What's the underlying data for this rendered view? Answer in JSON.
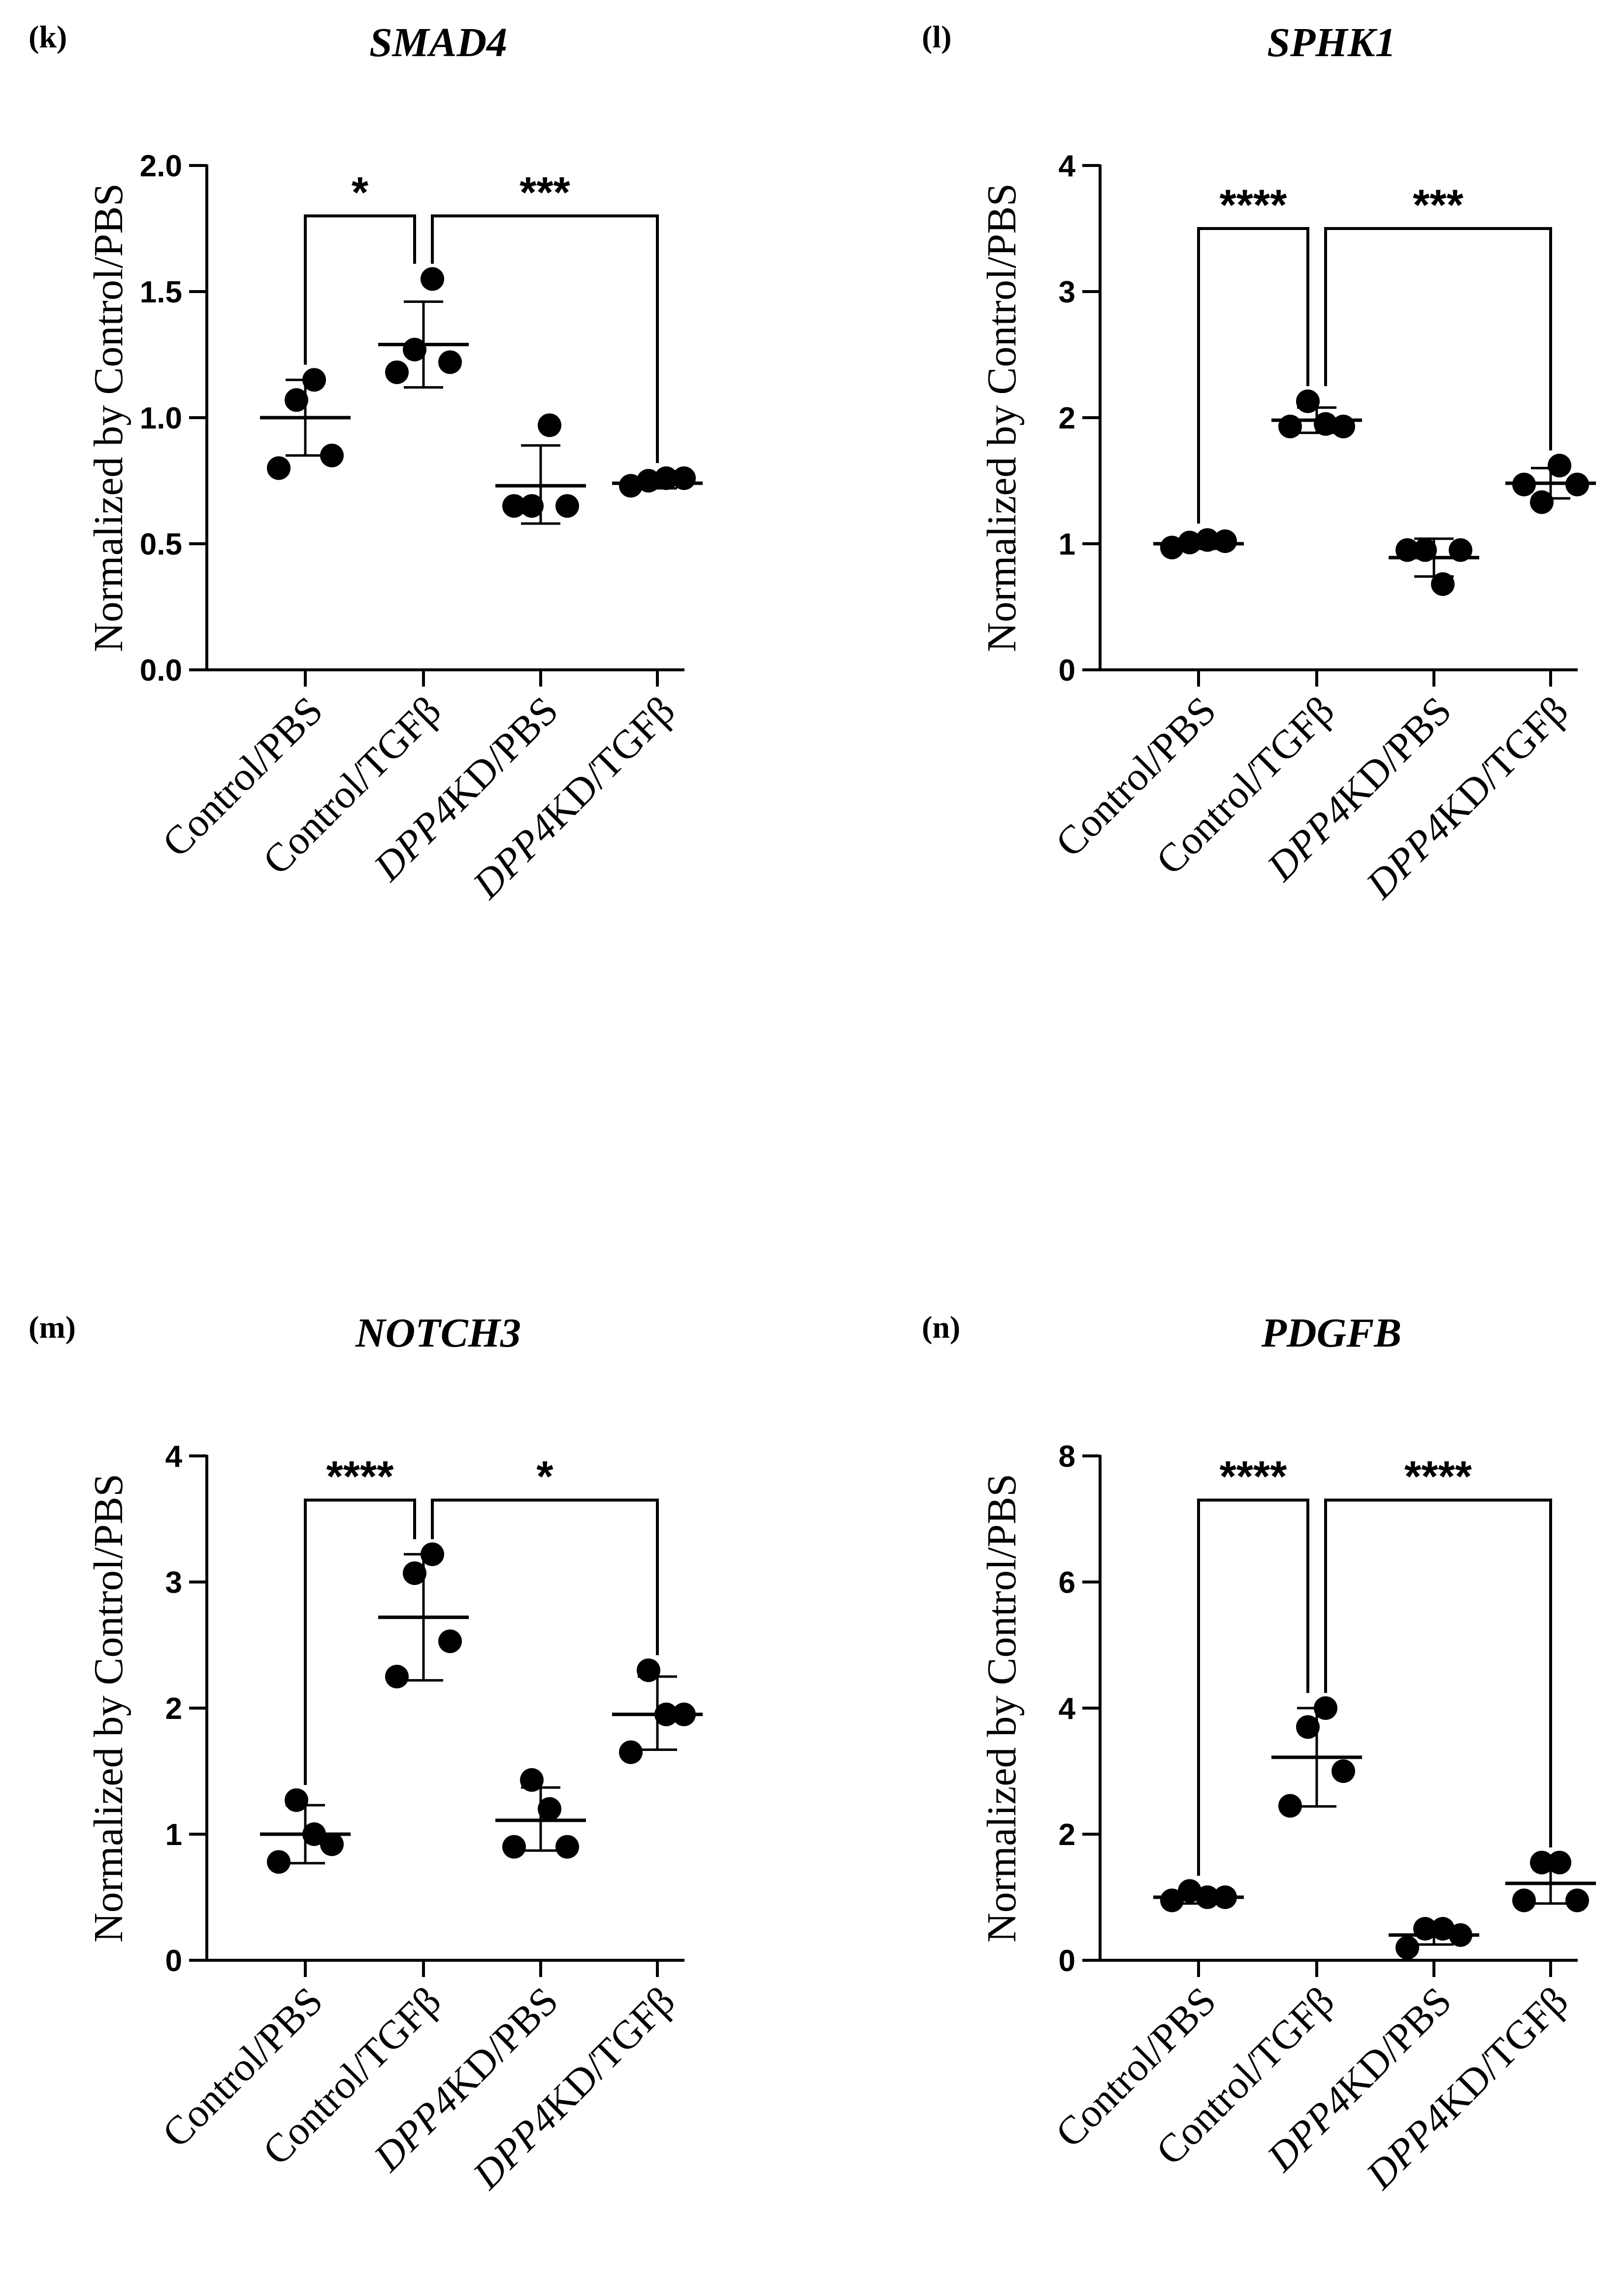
{
  "chart_data": [
    {
      "panel_label": "(k)",
      "title": "SMAD4",
      "type": "scatter",
      "ylabel": "Normalized by Control/PBS",
      "ylim": [
        0,
        2.0
      ],
      "yticks": [
        "0.0",
        "0.5",
        "1.0",
        "1.5",
        "2.0"
      ],
      "categories": [
        {
          "prefix": "Control/",
          "italic": "",
          "suffix": "PBS"
        },
        {
          "prefix": "Control/",
          "italic": "",
          "suffix": "TGFβ"
        },
        {
          "prefix": "",
          "italic": "DPP4",
          "suffix": "KD/PBS"
        },
        {
          "prefix": "",
          "italic": "DPP4",
          "suffix": "KD/TGFβ"
        }
      ],
      "groups": [
        {
          "points": [
            0.8,
            1.07,
            1.15,
            0.85
          ],
          "mean": 1.0,
          "sd_low": 0.85,
          "sd_high": 1.15
        },
        {
          "points": [
            1.18,
            1.27,
            1.55,
            1.22
          ],
          "mean": 1.29,
          "sd_low": 1.12,
          "sd_high": 1.46
        },
        {
          "points": [
            0.65,
            0.65,
            0.97,
            0.65
          ],
          "mean": 0.73,
          "sd_low": 0.58,
          "sd_high": 0.89
        },
        {
          "points": [
            0.73,
            0.75,
            0.76,
            0.76
          ],
          "mean": 0.74,
          "sd_low": 0.72,
          "sd_high": 0.76
        }
      ],
      "brackets": [
        {
          "from": 0,
          "to": 1,
          "y": 1.8,
          "label": "*"
        },
        {
          "from": 1,
          "to": 3,
          "y": 1.8,
          "label": "***"
        }
      ]
    },
    {
      "panel_label": "(l)",
      "title": "SPHK1",
      "type": "scatter",
      "ylabel": "Normalized by Control/PBS",
      "ylim": [
        0,
        4
      ],
      "yticks": [
        "0",
        "1",
        "2",
        "3",
        "4"
      ],
      "categories": [
        {
          "prefix": "Control/",
          "italic": "",
          "suffix": "PBS"
        },
        {
          "prefix": "Control/",
          "italic": "",
          "suffix": "TGFβ"
        },
        {
          "prefix": "",
          "italic": "DPP4",
          "suffix": "KD/PBS"
        },
        {
          "prefix": "",
          "italic": "DPP4",
          "suffix": "KD/TGFβ"
        }
      ],
      "groups": [
        {
          "points": [
            0.97,
            1.01,
            1.03,
            1.02
          ],
          "mean": 1.0,
          "sd_low": 0.96,
          "sd_high": 1.04
        },
        {
          "points": [
            1.93,
            2.13,
            1.95,
            1.93
          ],
          "mean": 1.98,
          "sd_low": 1.88,
          "sd_high": 2.08
        },
        {
          "points": [
            0.95,
            0.95,
            0.68,
            0.95
          ],
          "mean": 0.89,
          "sd_low": 0.74,
          "sd_high": 1.04
        },
        {
          "points": [
            1.47,
            1.33,
            1.62,
            1.47
          ],
          "mean": 1.48,
          "sd_low": 1.36,
          "sd_high": 1.6
        }
      ],
      "brackets": [
        {
          "from": 0,
          "to": 1,
          "y": 3.5,
          "label": "****"
        },
        {
          "from": 1,
          "to": 3,
          "y": 3.5,
          "label": "***"
        }
      ]
    },
    {
      "panel_label": "(m)",
      "title": "NOTCH3",
      "type": "scatter",
      "ylabel": "Normalized by Control/PBS",
      "ylim": [
        0,
        4
      ],
      "yticks": [
        "0",
        "1",
        "2",
        "3",
        "4"
      ],
      "categories": [
        {
          "prefix": "Control/",
          "italic": "",
          "suffix": "PBS"
        },
        {
          "prefix": "Control/",
          "italic": "",
          "suffix": "TGFβ"
        },
        {
          "prefix": "",
          "italic": "DPP4",
          "suffix": "KD/PBS"
        },
        {
          "prefix": "",
          "italic": "DPP4",
          "suffix": "KD/TGFβ"
        }
      ],
      "groups": [
        {
          "points": [
            0.78,
            1.27,
            1.0,
            0.92
          ],
          "mean": 1.0,
          "sd_low": 0.77,
          "sd_high": 1.23
        },
        {
          "points": [
            2.25,
            3.07,
            3.22,
            2.53
          ],
          "mean": 2.72,
          "sd_low": 2.22,
          "sd_high": 3.22
        },
        {
          "points": [
            0.9,
            1.43,
            1.2,
            0.9
          ],
          "mean": 1.11,
          "sd_low": 0.87,
          "sd_high": 1.37
        },
        {
          "points": [
            1.65,
            2.3,
            1.95,
            1.95
          ],
          "mean": 1.95,
          "sd_low": 1.67,
          "sd_high": 2.25
        }
      ],
      "brackets": [
        {
          "from": 0,
          "to": 1,
          "y": 3.65,
          "label": "****"
        },
        {
          "from": 1,
          "to": 3,
          "y": 3.65,
          "label": "*"
        }
      ]
    },
    {
      "panel_label": "(n)",
      "title": "PDGFB",
      "type": "scatter",
      "ylabel": "Normalized by Control/PBS",
      "ylim": [
        0,
        8
      ],
      "yticks": [
        "0",
        "2",
        "4",
        "6",
        "8"
      ],
      "categories": [
        {
          "prefix": "Control/",
          "italic": "",
          "suffix": "PBS"
        },
        {
          "prefix": "Control/",
          "italic": "",
          "suffix": "TGFβ"
        },
        {
          "prefix": "",
          "italic": "DPP4",
          "suffix": "KD/PBS"
        },
        {
          "prefix": "",
          "italic": "DPP4",
          "suffix": "KD/TGFβ"
        }
      ],
      "groups": [
        {
          "points": [
            0.95,
            1.1,
            1.0,
            1.0
          ],
          "mean": 1.0,
          "sd_low": 0.9,
          "sd_high": 1.1
        },
        {
          "points": [
            2.45,
            3.7,
            4.0,
            3.0
          ],
          "mean": 3.22,
          "sd_low": 2.44,
          "sd_high": 4.0
        },
        {
          "points": [
            0.2,
            0.5,
            0.5,
            0.4
          ],
          "mean": 0.4,
          "sd_low": 0.25,
          "sd_high": 0.55
        },
        {
          "points": [
            0.95,
            1.55,
            1.55,
            0.95
          ],
          "mean": 1.22,
          "sd_low": 0.9,
          "sd_high": 1.55
        }
      ],
      "brackets": [
        {
          "from": 0,
          "to": 1,
          "y": 7.3,
          "label": "****"
        },
        {
          "from": 1,
          "to": 3,
          "y": 7.3,
          "label": "****"
        }
      ]
    }
  ]
}
